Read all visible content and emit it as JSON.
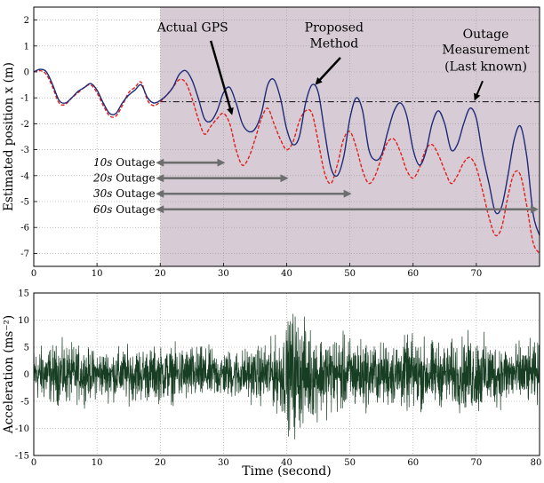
{
  "chart_data": [
    {
      "type": "line",
      "title": "",
      "xlabel": "",
      "ylabel": "Estimated position x (m)",
      "xlim": [
        0,
        80
      ],
      "ylim": [
        -7.5,
        2.5
      ],
      "grid": "dotted",
      "x_ticks": [
        "0",
        "10",
        "20",
        "30",
        "40",
        "50",
        "60",
        "70"
      ],
      "y_ticks": [
        "2",
        "1",
        "0",
        "-1",
        "-2",
        "-3",
        "-4",
        "-5",
        "-6",
        "-7"
      ],
      "shaded_region": {
        "x_from": 20,
        "x_to": 80,
        "color": "#d7ccd6"
      },
      "series": [
        {
          "name": "Proposed Method",
          "color": "#1f2a78",
          "style": "solid",
          "points": [
            [
              0,
              0
            ],
            [
              1,
              0.1
            ],
            [
              2,
              0
            ],
            [
              3,
              -0.5
            ],
            [
              4,
              -1.1
            ],
            [
              5,
              -1.2
            ],
            [
              6,
              -1.0
            ],
            [
              7,
              -0.75
            ],
            [
              8,
              -0.6
            ],
            [
              9,
              -0.45
            ],
            [
              10,
              -0.7
            ],
            [
              11,
              -1.2
            ],
            [
              12,
              -1.6
            ],
            [
              13,
              -1.6
            ],
            [
              14,
              -1.2
            ],
            [
              15,
              -0.9
            ],
            [
              16,
              -0.7
            ],
            [
              17,
              -0.5
            ],
            [
              18,
              -1.0
            ],
            [
              19,
              -1.2
            ],
            [
              20,
              -1.1
            ],
            [
              21,
              -0.9
            ],
            [
              22,
              -0.6
            ],
            [
              23,
              -0.1
            ],
            [
              24,
              0.05
            ],
            [
              25,
              -0.3
            ],
            [
              26,
              -1.0
            ],
            [
              27,
              -1.8
            ],
            [
              28,
              -1.9
            ],
            [
              29,
              -1.5
            ],
            [
              30,
              -0.8
            ],
            [
              31,
              -0.6
            ],
            [
              32,
              -1.2
            ],
            [
              33,
              -2.0
            ],
            [
              34,
              -2.3
            ],
            [
              35,
              -2.2
            ],
            [
              36,
              -1.6
            ],
            [
              37,
              -0.5
            ],
            [
              38,
              -0.3
            ],
            [
              39,
              -1.0
            ],
            [
              40,
              -2.2
            ],
            [
              41,
              -2.8
            ],
            [
              42,
              -2.5
            ],
            [
              43,
              -1.2
            ],
            [
              44,
              -0.5
            ],
            [
              45,
              -0.8
            ],
            [
              46,
              -2.3
            ],
            [
              47,
              -3.7
            ],
            [
              48,
              -4.0
            ],
            [
              49,
              -3.3
            ],
            [
              50,
              -1.8
            ],
            [
              51,
              -1.0
            ],
            [
              52,
              -1.5
            ],
            [
              53,
              -3.0
            ],
            [
              54,
              -3.4
            ],
            [
              55,
              -3.2
            ],
            [
              56,
              -2.3
            ],
            [
              57,
              -1.5
            ],
            [
              58,
              -1.2
            ],
            [
              59,
              -1.7
            ],
            [
              60,
              -3.0
            ],
            [
              61,
              -3.6
            ],
            [
              62,
              -3.1
            ],
            [
              63,
              -2.0
            ],
            [
              64,
              -1.5
            ],
            [
              65,
              -2.0
            ],
            [
              66,
              -3.0
            ],
            [
              67,
              -2.8
            ],
            [
              68,
              -2.0
            ],
            [
              69,
              -1.4
            ],
            [
              70,
              -1.8
            ],
            [
              71,
              -3.2
            ],
            [
              72,
              -4.3
            ],
            [
              73,
              -5.4
            ],
            [
              74,
              -5.2
            ],
            [
              75,
              -4.0
            ],
            [
              76,
              -2.6
            ],
            [
              77,
              -2.1
            ],
            [
              78,
              -3.3
            ],
            [
              79,
              -5.5
            ],
            [
              80,
              -6.3
            ]
          ]
        },
        {
          "name": "Actual GPS",
          "color": "#e3201b",
          "style": "dashed",
          "points": [
            [
              0,
              0
            ],
            [
              1,
              0.05
            ],
            [
              2,
              -0.1
            ],
            [
              3,
              -0.6
            ],
            [
              4,
              -1.2
            ],
            [
              5,
              -1.25
            ],
            [
              6,
              -1.0
            ],
            [
              7,
              -0.8
            ],
            [
              8,
              -0.6
            ],
            [
              9,
              -0.5
            ],
            [
              10,
              -0.8
            ],
            [
              11,
              -1.3
            ],
            [
              12,
              -1.7
            ],
            [
              13,
              -1.7
            ],
            [
              14,
              -1.3
            ],
            [
              15,
              -0.8
            ],
            [
              16,
              -0.6
            ],
            [
              17,
              -0.4
            ],
            [
              18,
              -1.1
            ],
            [
              19,
              -1.3
            ],
            [
              20,
              -1.15
            ],
            [
              21,
              -0.9
            ],
            [
              22,
              -0.6
            ],
            [
              23,
              -0.3
            ],
            [
              24,
              -0.4
            ],
            [
              25,
              -1.0
            ],
            [
              26,
              -1.8
            ],
            [
              27,
              -2.4
            ],
            [
              28,
              -2.1
            ],
            [
              29,
              -1.8
            ],
            [
              30,
              -1.6
            ],
            [
              31,
              -2.0
            ],
            [
              32,
              -3.0
            ],
            [
              33,
              -3.6
            ],
            [
              34,
              -3.3
            ],
            [
              35,
              -2.6
            ],
            [
              36,
              -1.8
            ],
            [
              37,
              -1.4
            ],
            [
              38,
              -2.0
            ],
            [
              39,
              -2.6
            ],
            [
              40,
              -3.0
            ],
            [
              41,
              -2.7
            ],
            [
              42,
              -1.9
            ],
            [
              43,
              -1.5
            ],
            [
              44,
              -1.6
            ],
            [
              45,
              -2.7
            ],
            [
              46,
              -3.9
            ],
            [
              47,
              -4.3
            ],
            [
              48,
              -3.6
            ],
            [
              49,
              -2.6
            ],
            [
              50,
              -2.3
            ],
            [
              51,
              -2.9
            ],
            [
              52,
              -3.8
            ],
            [
              53,
              -4.3
            ],
            [
              54,
              -4.0
            ],
            [
              55,
              -3.3
            ],
            [
              56,
              -2.7
            ],
            [
              57,
              -2.6
            ],
            [
              58,
              -3.1
            ],
            [
              59,
              -3.8
            ],
            [
              60,
              -4.1
            ],
            [
              61,
              -3.7
            ],
            [
              62,
              -3.0
            ],
            [
              63,
              -2.8
            ],
            [
              64,
              -3.2
            ],
            [
              65,
              -3.8
            ],
            [
              66,
              -4.3
            ],
            [
              67,
              -4.0
            ],
            [
              68,
              -3.5
            ],
            [
              69,
              -3.3
            ],
            [
              70,
              -3.7
            ],
            [
              71,
              -4.6
            ],
            [
              72,
              -5.6
            ],
            [
              73,
              -6.3
            ],
            [
              74,
              -6.0
            ],
            [
              75,
              -4.8
            ],
            [
              76,
              -3.9
            ],
            [
              77,
              -4.0
            ],
            [
              78,
              -5.2
            ],
            [
              79,
              -6.6
            ],
            [
              80,
              -7.0
            ]
          ]
        },
        {
          "name": "Outage Measurement (Last known)",
          "color": "#222222",
          "style": "dashdot",
          "points": [
            [
              20,
              -1.15
            ],
            [
              80,
              -1.15
            ]
          ]
        }
      ],
      "annotations": [
        {
          "text": "Actual GPS"
        },
        {
          "text": "Proposed"
        },
        {
          "text": "Method"
        },
        {
          "text": "Outage"
        },
        {
          "text": "Measurement"
        },
        {
          "text": "(Last known)"
        }
      ],
      "outages": [
        {
          "duration": "10s",
          "word": "Outage",
          "from": 20,
          "to": 30
        },
        {
          "duration": "20s",
          "word": "Outage",
          "from": 20,
          "to": 40
        },
        {
          "duration": "30s",
          "word": "Outage",
          "from": 20,
          "to": 50
        },
        {
          "duration": "60s",
          "word": "Outage",
          "from": 20,
          "to": 80
        }
      ]
    },
    {
      "type": "line",
      "title": "",
      "xlabel": "Time (second)",
      "ylabel": "Acceleration (ms⁻²)",
      "xlim": [
        0,
        80
      ],
      "ylim": [
        -15,
        15
      ],
      "grid": "dotted",
      "x_ticks": [
        "0",
        "10",
        "20",
        "30",
        "40",
        "50",
        "60",
        "70",
        "80"
      ],
      "y_ticks": [
        "15",
        "10",
        "5",
        "0",
        "-5",
        "-10",
        "-15"
      ],
      "series": [
        {
          "color": "#173d22",
          "amplitude_envelope": [
            [
              0,
              4
            ],
            [
              5,
              4.5
            ],
            [
              10,
              3.5
            ],
            [
              15,
              4
            ],
            [
              20,
              4
            ],
            [
              25,
              4.2
            ],
            [
              30,
              3.5
            ],
            [
              35,
              4
            ],
            [
              38,
              5
            ],
            [
              40,
              7
            ],
            [
              41,
              10
            ],
            [
              42,
              8
            ],
            [
              45,
              6
            ],
            [
              50,
              5.5
            ],
            [
              55,
              4.5
            ],
            [
              60,
              5.5
            ],
            [
              65,
              4.5
            ],
            [
              70,
              6
            ],
            [
              72,
              5
            ],
            [
              75,
              4.5
            ],
            [
              80,
              4.5
            ]
          ]
        }
      ]
    }
  ]
}
